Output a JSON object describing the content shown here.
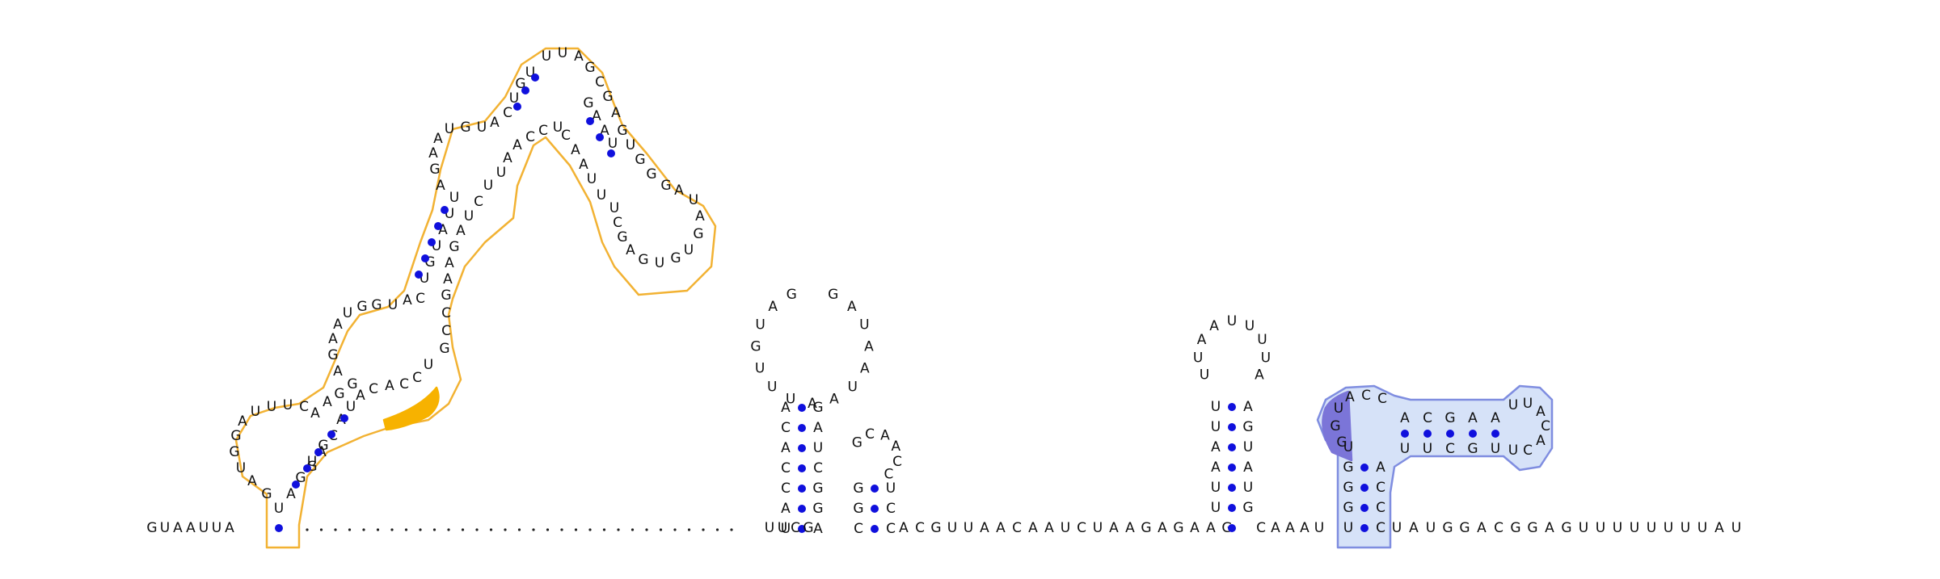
{
  "colors": {
    "domain_outline": "#f2b233",
    "domain_fill": "#ffffff",
    "domain_highlight": "#f7b200",
    "domain2_outline": "#7f8de0",
    "domain2_fill": "#d6e2f8",
    "domain2_highlight": "#7b75d8",
    "pair": "#1010dd",
    "backbone": "#222222",
    "text": "#111111"
  },
  "strand_5p": [
    "G",
    "U",
    "A",
    "A",
    "U",
    "U",
    "A"
  ],
  "hairpin1": {
    "stem_a_left": [
      "U",
      "A",
      "G",
      "U",
      "G"
    ],
    "loop_a": [
      "G",
      "A",
      "U",
      "G",
      "G",
      "A",
      "U",
      "U",
      "U",
      "C",
      "A"
    ],
    "stem_b_left": [
      "A",
      "G",
      "G"
    ],
    "internal_left": [
      "A",
      "G",
      "A",
      "A",
      "U",
      "G",
      "G",
      "U",
      "A",
      "C"
    ],
    "stem_c_left": [
      "U",
      "G",
      "U",
      "A",
      "U",
      "U"
    ],
    "internal_left2": [
      "A",
      "G",
      "A",
      "A",
      "U",
      "G",
      "U",
      "A"
    ],
    "helix_left": [
      "C",
      "U",
      "G",
      "U"
    ],
    "apical": [
      "U",
      "U",
      "A",
      "G",
      "C",
      "G",
      "A",
      "G",
      "U",
      "G"
    ],
    "helix_right": [
      "U",
      "A",
      "A",
      "G"
    ],
    "side_loop": [
      "G",
      "G",
      "A",
      "U",
      "A",
      "G",
      "U",
      "G",
      "U",
      "G",
      "A",
      "G",
      "C",
      "U"
    ],
    "right_mid": [
      "U",
      "U",
      "A",
      "A",
      "C",
      "U",
      "C",
      "C",
      "A",
      "A",
      "U"
    ],
    "right_low": [
      "U",
      "C",
      "U",
      "A",
      "G",
      "A",
      "A",
      "G",
      "C",
      "C",
      "G"
    ],
    "right_base": [
      "U",
      "C",
      "C",
      "A",
      "C",
      "A",
      "U",
      "A",
      "C",
      "A",
      "G"
    ]
  },
  "linker_dots": 31,
  "hairpin2": {
    "stem_left": [
      "U",
      "A",
      "C",
      "C",
      "A",
      "C",
      "A"
    ],
    "loop": [
      "G",
      "A",
      "U",
      "G",
      "U",
      "U",
      "U",
      "A",
      "A",
      "U",
      "A",
      "A",
      "U",
      "A",
      "G"
    ],
    "stem_right": [
      "A",
      "G",
      "G",
      "C",
      "U",
      "A",
      "G"
    ],
    "small_loop": [
      "G",
      "C",
      "A",
      "A",
      "C",
      "C"
    ],
    "small_stem": [
      "G",
      "G",
      "C",
      "U",
      "C",
      "C"
    ]
  },
  "middle_strand": [
    "U",
    "U",
    "C",
    "G",
    "A",
    "C",
    "G",
    "U",
    "U",
    "A",
    "A",
    "C",
    "A",
    "A",
    "U",
    "C",
    "U",
    "A",
    "A",
    "G",
    "A",
    "G",
    "A",
    "A",
    "G"
  ],
  "hairpin3": {
    "stem_left": [
      "U",
      "U",
      "A",
      "A",
      "U",
      "U"
    ],
    "loop": [
      "A",
      "U",
      "U",
      "U",
      "U",
      "A",
      "A",
      "U",
      "U"
    ],
    "stem_right": [
      "G",
      "U",
      "A",
      "U",
      "G",
      "A"
    ]
  },
  "tail_strand_pre": [
    "C",
    "A",
    "A",
    "A",
    "U"
  ],
  "hairpin4": {
    "stem_left": [
      "U",
      "G",
      "G",
      "G",
      "U"
    ],
    "loop_left": [
      "G",
      "G",
      "U",
      "A",
      "C",
      "C"
    ],
    "helix_top": [
      "A",
      "C",
      "G",
      "A",
      "A"
    ],
    "loop_right": [
      "U",
      "U",
      "A",
      "C",
      "A",
      "C",
      "U"
    ],
    "helix_bottom": [
      "U",
      "U",
      "C",
      "G",
      "U"
    ],
    "stem_right": [
      "C",
      "C",
      "C",
      "A"
    ]
  },
  "tail_3p": [
    "U",
    "A",
    "U",
    "G",
    "G",
    "A",
    "C",
    "G",
    "G",
    "A",
    "G",
    "U",
    "U",
    "U",
    "U",
    "U",
    "U",
    "U",
    "U",
    "A",
    "U"
  ]
}
